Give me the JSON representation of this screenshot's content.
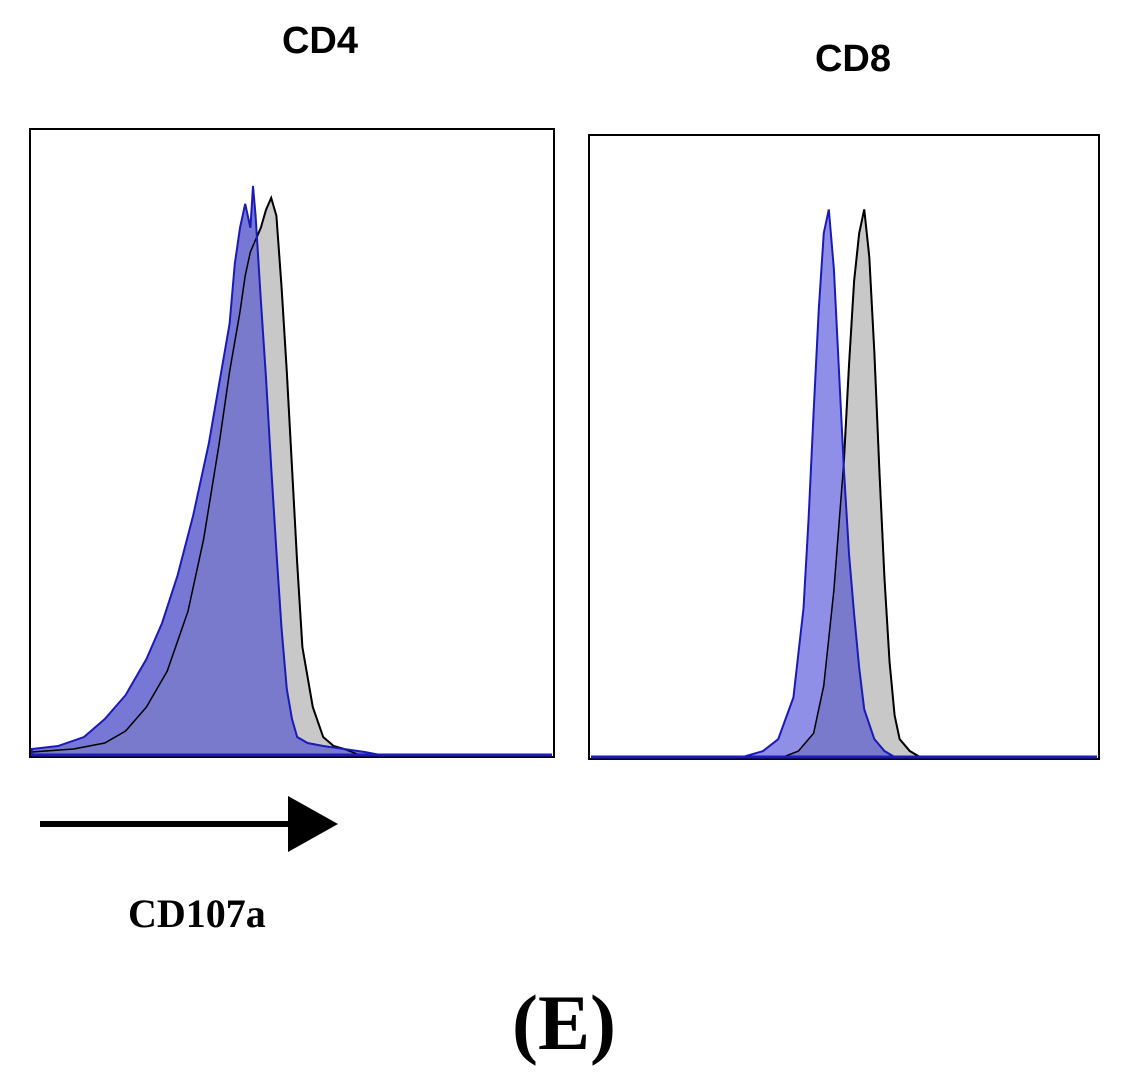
{
  "chart_data": [
    {
      "type": "area",
      "title": "CD4",
      "xlabel": "CD107a",
      "x_range": [
        0,
        100
      ],
      "y_range": [
        0,
        100
      ],
      "colors": {
        "sample": "#7777d6",
        "sample_edge": "#1a1ab8",
        "control": "#c8c8c8",
        "control_edge": "#000000",
        "overlap": "#7a7acc"
      },
      "series": [
        {
          "role": "sample",
          "x": [
            0,
            5,
            10,
            14,
            18,
            22,
            25,
            28,
            31,
            34,
            36,
            38,
            39,
            40,
            41,
            42,
            42.5,
            43,
            44,
            45,
            46,
            47,
            48,
            49,
            50,
            51,
            53,
            56,
            60,
            64,
            67
          ],
          "y": [
            1,
            1.5,
            3,
            6,
            10,
            16,
            22,
            30,
            40,
            52,
            62,
            72,
            82,
            88,
            92,
            88,
            95,
            90,
            76,
            63,
            48,
            34,
            21,
            11,
            6,
            3,
            2,
            1.5,
            1,
            0.5,
            0
          ]
        },
        {
          "role": "control",
          "x": [
            0,
            8,
            14,
            18,
            22,
            26,
            30,
            33,
            36,
            38,
            40,
            41,
            42,
            43,
            44,
            45,
            46,
            47,
            48,
            49,
            50,
            51,
            52,
            54,
            56,
            58,
            60,
            63
          ],
          "y": [
            0.5,
            1,
            2,
            4,
            8,
            14,
            24,
            36,
            52,
            64,
            74,
            80,
            84,
            86,
            88,
            91,
            93,
            90,
            78,
            64,
            48,
            32,
            18,
            8,
            3,
            1.5,
            1,
            0
          ]
        }
      ]
    },
    {
      "type": "area",
      "title": "CD8",
      "xlabel": "",
      "x_range": [
        0,
        100
      ],
      "y_range": [
        0,
        100
      ],
      "colors": {
        "sample": "#8f8fe8",
        "sample_edge": "#1a1ab8",
        "control": "#c8c8c8",
        "control_edge": "#000000",
        "overlap": "#7a7acc"
      },
      "series": [
        {
          "role": "sample",
          "x": [
            0,
            30,
            34,
            37,
            40,
            42,
            43,
            44,
            45,
            46,
            47,
            48,
            49,
            50,
            51,
            52,
            53,
            54,
            56,
            58,
            60
          ],
          "y": [
            0,
            0,
            1,
            3,
            10,
            25,
            40,
            58,
            75,
            88,
            92,
            82,
            65,
            48,
            34,
            24,
            15,
            8,
            3,
            1,
            0
          ]
        },
        {
          "role": "control",
          "x": [
            0,
            38,
            41,
            44,
            46,
            48,
            50,
            51,
            52,
            53,
            54,
            55,
            56,
            57,
            58,
            59,
            60,
            61,
            63,
            65
          ],
          "y": [
            0,
            0,
            1,
            4,
            12,
            28,
            50,
            66,
            80,
            88,
            92,
            84,
            68,
            48,
            30,
            16,
            7,
            3,
            1,
            0
          ]
        }
      ]
    }
  ],
  "labels": {
    "axis_label": "CD107a",
    "figure_label": "(E)"
  }
}
